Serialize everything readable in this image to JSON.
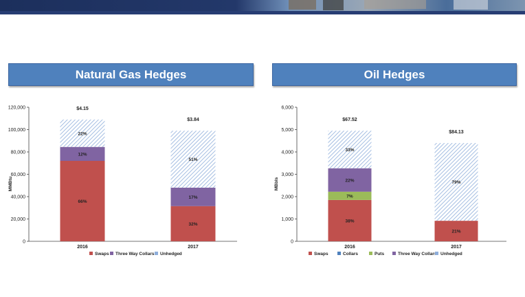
{
  "headers": {
    "gas": "Natural Gas Hedges",
    "oil": "Oil Hedges"
  },
  "colors": {
    "Swaps": "#c0504d",
    "Collars": "#4f81bd",
    "Puts": "#9bbb59",
    "Three Way Collars": "#8064a2",
    "Unhedged": "#c6d9f1",
    "Unhedged_hatch": "#8eaedb"
  },
  "chart_data": [
    {
      "type": "bar",
      "stacked": true,
      "ylim": [
        0,
        120000
      ],
      "yticks": [
        0,
        20000,
        40000,
        60000,
        80000,
        100000,
        120000
      ],
      "ytick_labels": [
        "0",
        "20,000",
        "40,000",
        "60,000",
        "80,000",
        "100,000",
        "120,000"
      ],
      "ylabel": "MMBtu",
      "categories": [
        "2016",
        "2017"
      ],
      "prices": [
        "$4.15",
        "$3.84"
      ],
      "legend": [
        "Swaps",
        "Three Way Collars",
        "Unhedged"
      ],
      "series": [
        {
          "name": "Swaps",
          "values": [
            72000,
            31500
          ],
          "labels": [
            "66%",
            "32%"
          ]
        },
        {
          "name": "Three Way Collars",
          "values": [
            12500,
            16500
          ],
          "labels": [
            "12%",
            "17%"
          ]
        },
        {
          "name": "Unhedged",
          "values": [
            24500,
            51000
          ],
          "labels": [
            "22%",
            "51%"
          ]
        }
      ]
    },
    {
      "type": "bar",
      "stacked": true,
      "ylim": [
        0,
        6000
      ],
      "yticks": [
        0,
        1000,
        2000,
        3000,
        4000,
        5000,
        6000
      ],
      "ytick_labels": [
        "0",
        "1,000",
        "2,000",
        "3,000",
        "4,000",
        "5,000",
        "6,000"
      ],
      "ylabel": "MBbls",
      "categories": [
        "2016",
        "2017"
      ],
      "prices": [
        "$67.52",
        "$84.13"
      ],
      "legend": [
        "Swaps",
        "Collars",
        "Puts",
        "Three Way Collars",
        "Unhedged"
      ],
      "series": [
        {
          "name": "Swaps",
          "values": [
            1850,
            920
          ],
          "labels": [
            "38%",
            "21%"
          ]
        },
        {
          "name": "Collars",
          "values": [
            0,
            0
          ],
          "labels": [
            "",
            ""
          ]
        },
        {
          "name": "Puts",
          "values": [
            370,
            0
          ],
          "labels": [
            "7%",
            ""
          ]
        },
        {
          "name": "Three Way Collars",
          "values": [
            1050,
            0
          ],
          "labels": [
            "22%",
            ""
          ]
        },
        {
          "name": "Unhedged",
          "values": [
            1680,
            3480
          ],
          "labels": [
            "33%",
            "79%"
          ]
        }
      ]
    }
  ]
}
